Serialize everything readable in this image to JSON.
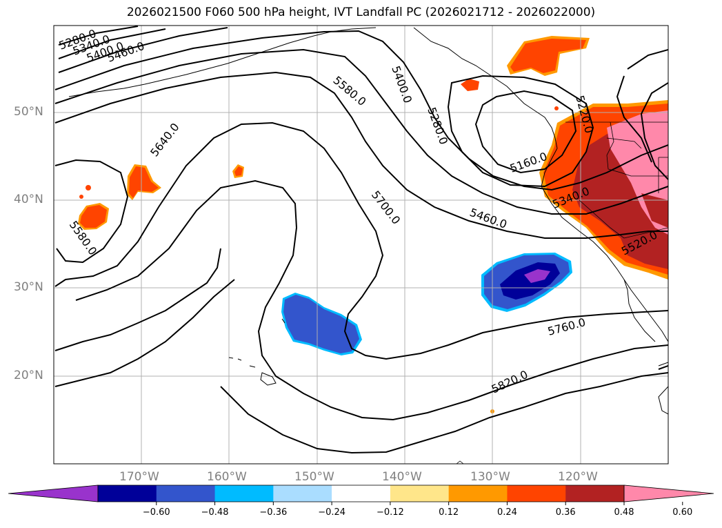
{
  "title": "2026021500 F060 500 hPa height, IVT Landfall PC (2026021712 - 2026022000)",
  "lat_labels": [
    "50°N",
    "40°N",
    "30°N",
    "20°N"
  ],
  "lon_labels": [
    "170°W",
    "160°W",
    "150°W",
    "140°W",
    "130°W",
    "120°W"
  ],
  "contour_labels": [
    "5280.0",
    "5340.0",
    "5400.0",
    "5460.0",
    "5580.0",
    "5400.0",
    "5280.0",
    "5640.0",
    "5700.0",
    "5160.0",
    "5220.0",
    "5460.0",
    "5340.0",
    "5520.0",
    "5580.0",
    "5760.0",
    "5820.0"
  ],
  "colorbar": {
    "ticks": [
      "−0.60",
      "−0.48",
      "−0.36",
      "−0.24",
      "−0.12",
      "0.12",
      "0.24",
      "0.36",
      "0.48",
      "0.60"
    ],
    "colors": [
      "#9933cc",
      "#000099",
      "#3355cc",
      "#00bbff",
      "#aaddff",
      "#ffffff",
      "#ffe68a",
      "#ff9900",
      "#ff4400",
      "#b22222",
      "#ff88aa"
    ]
  }
}
